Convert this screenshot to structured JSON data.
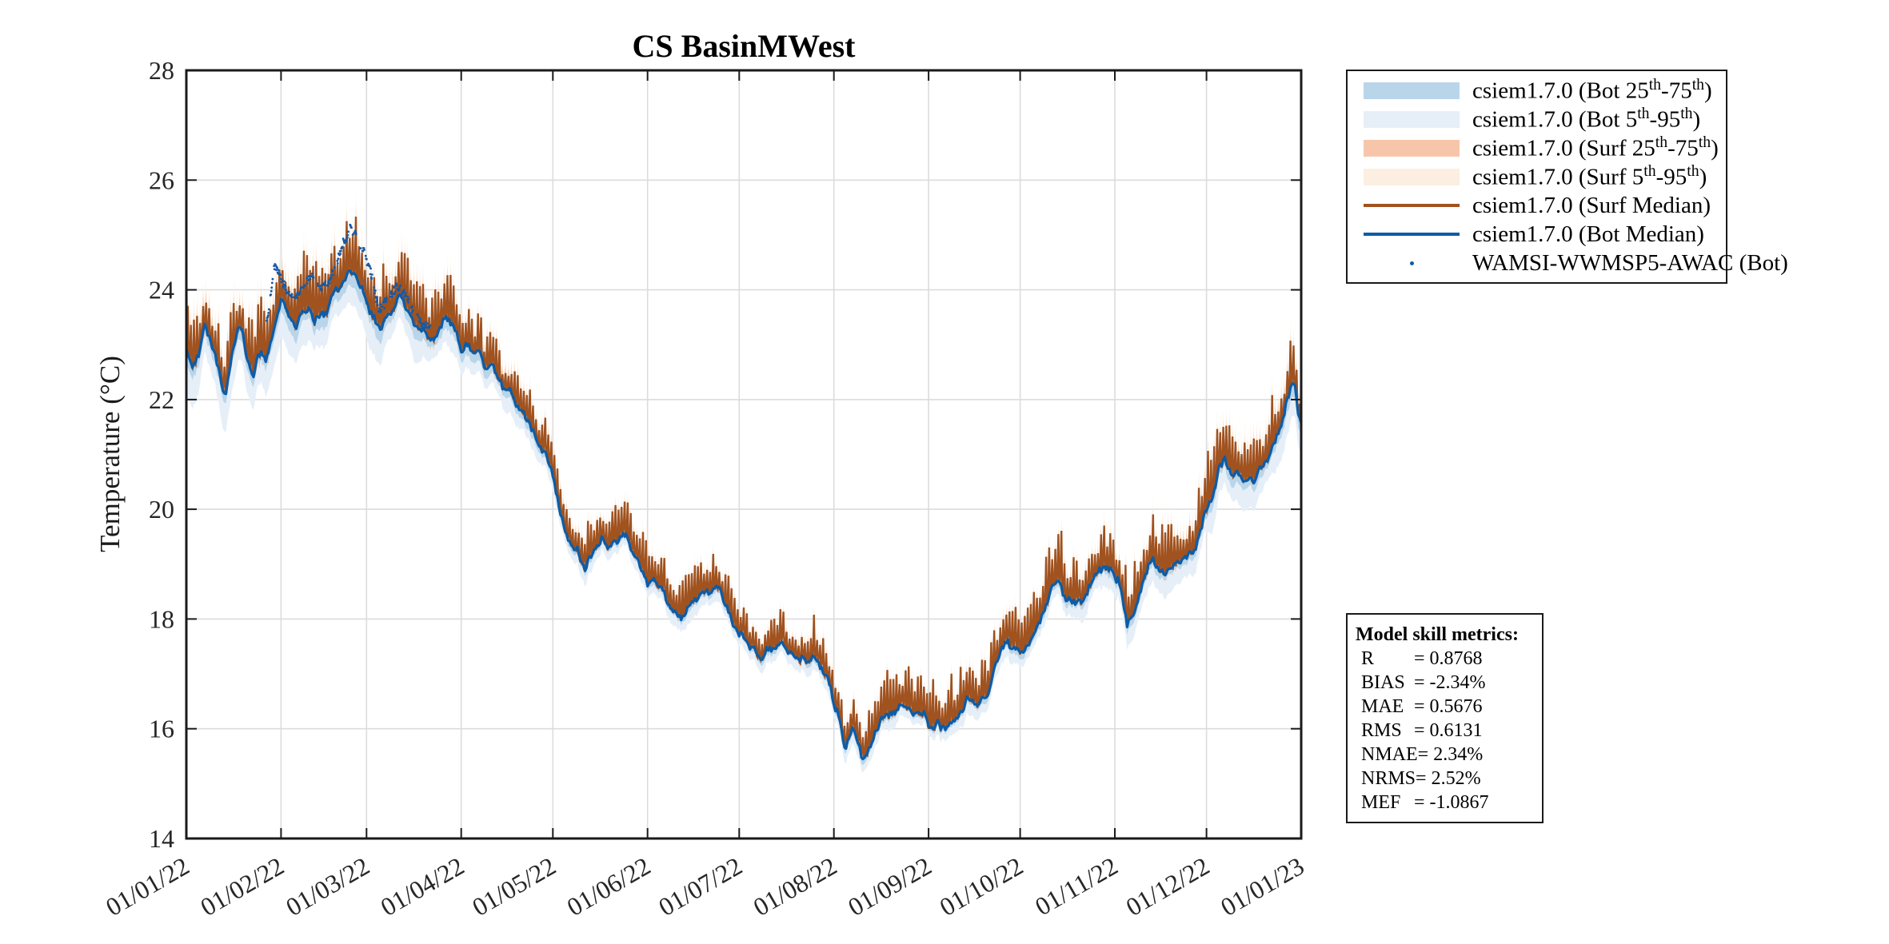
{
  "colors": {
    "bot_band_25_75": "#b9d5ea",
    "bot_band_5_95": "#e6eff8",
    "surf_band_25_75": "#f7c6aa",
    "surf_band_5_95": "#fcefe1",
    "surf_median": "#a0521f",
    "bot_median": "#0d5ca6",
    "obs": "#1559a5",
    "grid": "#dcdcdc",
    "axis": "#1a1a1a",
    "tick_text": "#262626",
    "title_text": "#000000"
  },
  "legend": {
    "items": [
      {
        "label": "csiem1.7.0 (Bot 25^{th}-75^{th})",
        "swatch": "patch",
        "color_key": "bot_band_25_75"
      },
      {
        "label": "csiem1.7.0 (Bot 5^{th}-95^{th})",
        "swatch": "patch",
        "color_key": "bot_band_5_95"
      },
      {
        "label": "csiem1.7.0 (Surf 25^{th}-75^{th})",
        "swatch": "patch",
        "color_key": "surf_band_25_75"
      },
      {
        "label": "csiem1.7.0 (Surf 5^{th}-95^{th})",
        "swatch": "patch",
        "color_key": "surf_band_5_95"
      },
      {
        "label": "csiem1.7.0 (Surf Median)",
        "swatch": "line",
        "color_key": "surf_median"
      },
      {
        "label": "csiem1.7.0 (Bot Median)",
        "swatch": "line",
        "color_key": "bot_median"
      },
      {
        "label": "WAMSI-WWMSP5-AWAC (Bot)",
        "swatch": "dot",
        "color_key": "obs"
      }
    ]
  },
  "metrics": {
    "title": "Model skill metrics:",
    "rows": [
      {
        "label": "R",
        "value": "0.8768"
      },
      {
        "label": "BIAS",
        "value": "-2.34%"
      },
      {
        "label": "MAE",
        "value": "0.5676"
      },
      {
        "label": "RMS",
        "value": "0.6131"
      },
      {
        "label": "NMAE",
        "value": "2.34%"
      },
      {
        "label": "NRMS",
        "value": "2.52%"
      },
      {
        "label": "MEF",
        "value": "-1.0867"
      }
    ]
  },
  "chart_data": {
    "type": "line",
    "title": "CS BasinMWest",
    "ylabel": "Temperature (°C)",
    "xlabel": "",
    "grid": true,
    "legend_position": "outside-top-right",
    "ylim": [
      14,
      28
    ],
    "xlim_days": [
      0,
      365
    ],
    "y_ticks": [
      14,
      16,
      18,
      20,
      22,
      24,
      26,
      28
    ],
    "x_ticks": [
      {
        "day": 0,
        "label": "01/01/22"
      },
      {
        "day": 31,
        "label": "01/02/22"
      },
      {
        "day": 59,
        "label": "01/03/22"
      },
      {
        "day": 90,
        "label": "01/04/22"
      },
      {
        "day": 120,
        "label": "01/05/22"
      },
      {
        "day": 151,
        "label": "01/06/22"
      },
      {
        "day": 181,
        "label": "01/07/22"
      },
      {
        "day": 212,
        "label": "01/08/22"
      },
      {
        "day": 243,
        "label": "01/09/22"
      },
      {
        "day": 273,
        "label": "01/10/22"
      },
      {
        "day": 304,
        "label": "01/11/22"
      },
      {
        "day": 334,
        "label": "01/12/22"
      },
      {
        "day": 365,
        "label": "01/01/23"
      }
    ],
    "series_names": [
      "csiem1.7.0 (Bot Median)",
      "csiem1.7.0 (Surf Median)",
      "WAMSI-WWMSP5-AWAC (Bot)"
    ],
    "bot_median_waypoints": [
      [
        0,
        23.0
      ],
      [
        2,
        22.6
      ],
      [
        4,
        22.75
      ],
      [
        6,
        23.3
      ],
      [
        8,
        23.1
      ],
      [
        10,
        22.7
      ],
      [
        12,
        22.25
      ],
      [
        13,
        22.15
      ],
      [
        15,
        22.9
      ],
      [
        17,
        23.25
      ],
      [
        19,
        23.05
      ],
      [
        21,
        22.6
      ],
      [
        22,
        22.45
      ],
      [
        23,
        22.7
      ],
      [
        25,
        22.85
      ],
      [
        26,
        22.7
      ],
      [
        28,
        23.2
      ],
      [
        30,
        23.6
      ],
      [
        31,
        23.75
      ],
      [
        33,
        23.55
      ],
      [
        36,
        23.35
      ],
      [
        38,
        23.6
      ],
      [
        40,
        23.7
      ],
      [
        42,
        23.5
      ],
      [
        44,
        23.6
      ],
      [
        47,
        23.75
      ],
      [
        49,
        24.0
      ],
      [
        52,
        24.25
      ],
      [
        53,
        24.35
      ],
      [
        55,
        24.2
      ],
      [
        57,
        24.0
      ],
      [
        59,
        23.65
      ],
      [
        60,
        23.55
      ],
      [
        62,
        23.35
      ],
      [
        64,
        23.25
      ],
      [
        65,
        23.45
      ],
      [
        68,
        23.7
      ],
      [
        70,
        23.85
      ],
      [
        72,
        23.6
      ],
      [
        74,
        23.4
      ],
      [
        76,
        23.25
      ],
      [
        78,
        23.2
      ],
      [
        80,
        23.05
      ],
      [
        83,
        23.3
      ],
      [
        85,
        23.45
      ],
      [
        87,
        23.35
      ],
      [
        90,
        23.0
      ],
      [
        93,
        22.85
      ],
      [
        96,
        22.78
      ],
      [
        99,
        22.6
      ],
      [
        101,
        22.5
      ],
      [
        104,
        22.25
      ],
      [
        107,
        22.05
      ],
      [
        110,
        21.8
      ],
      [
        112,
        21.7
      ],
      [
        114,
        21.45
      ],
      [
        116,
        21.2
      ],
      [
        118,
        21.0
      ],
      [
        120,
        20.6
      ],
      [
        122,
        20.15
      ],
      [
        124,
        19.7
      ],
      [
        126,
        19.35
      ],
      [
        128,
        19.3
      ],
      [
        131,
        18.95
      ],
      [
        133,
        19.1
      ],
      [
        136,
        19.45
      ],
      [
        139,
        19.4
      ],
      [
        141,
        19.45
      ],
      [
        143,
        19.5
      ],
      [
        145,
        19.35
      ],
      [
        147,
        19.2
      ],
      [
        149,
        18.9
      ],
      [
        151,
        18.7
      ],
      [
        153,
        18.75
      ],
      [
        155,
        18.6
      ],
      [
        158,
        18.35
      ],
      [
        160,
        18.2
      ],
      [
        162,
        18.05
      ],
      [
        164,
        18.2
      ],
      [
        166,
        18.3
      ],
      [
        168,
        18.35
      ],
      [
        171,
        18.45
      ],
      [
        173,
        18.55
      ],
      [
        175,
        18.5
      ],
      [
        177,
        18.3
      ],
      [
        179,
        18.0
      ],
      [
        181,
        17.75
      ],
      [
        183,
        17.6
      ],
      [
        185,
        17.45
      ],
      [
        187,
        17.3
      ],
      [
        189,
        17.25
      ],
      [
        191,
        17.45
      ],
      [
        193,
        17.55
      ],
      [
        195,
        17.6
      ],
      [
        197,
        17.45
      ],
      [
        199,
        17.35
      ],
      [
        201,
        17.25
      ],
      [
        203,
        17.25
      ],
      [
        205,
        17.3
      ],
      [
        207,
        17.15
      ],
      [
        209,
        16.95
      ],
      [
        211,
        16.7
      ],
      [
        213,
        16.3
      ],
      [
        215,
        15.8
      ],
      [
        216,
        15.7
      ],
      [
        217,
        15.9
      ],
      [
        218,
        16.1
      ],
      [
        219,
        15.95
      ],
      [
        221,
        15.6
      ],
      [
        222,
        15.55
      ],
      [
        224,
        15.7
      ],
      [
        226,
        16.05
      ],
      [
        228,
        16.15
      ],
      [
        230,
        16.25
      ],
      [
        232,
        16.3
      ],
      [
        234,
        16.4
      ],
      [
        236,
        16.45
      ],
      [
        238,
        16.35
      ],
      [
        240,
        16.3
      ],
      [
        243,
        16.1
      ],
      [
        245,
        16.05
      ],
      [
        247,
        16.0
      ],
      [
        249,
        16.05
      ],
      [
        251,
        16.15
      ],
      [
        254,
        16.4
      ],
      [
        257,
        16.5
      ],
      [
        259,
        16.45
      ],
      [
        261,
        16.6
      ],
      [
        263,
        16.75
      ],
      [
        265,
        17.25
      ],
      [
        267,
        17.45
      ],
      [
        269,
        17.55
      ],
      [
        271,
        17.45
      ],
      [
        273,
        17.4
      ],
      [
        275,
        17.45
      ],
      [
        277,
        17.6
      ],
      [
        279,
        17.9
      ],
      [
        281,
        18.25
      ],
      [
        283,
        18.55
      ],
      [
        285,
        18.65
      ],
      [
        287,
        18.45
      ],
      [
        289,
        18.35
      ],
      [
        291,
        18.25
      ],
      [
        293,
        18.3
      ],
      [
        295,
        18.45
      ],
      [
        297,
        18.65
      ],
      [
        299,
        18.85
      ],
      [
        301,
        18.95
      ],
      [
        303,
        18.9
      ],
      [
        305,
        18.7
      ],
      [
        307,
        18.2
      ],
      [
        308,
        17.95
      ],
      [
        310,
        18.1
      ],
      [
        312,
        18.4
      ],
      [
        314,
        18.85
      ],
      [
        316,
        19.0
      ],
      [
        318,
        19.05
      ],
      [
        320,
        18.95
      ],
      [
        322,
        18.9
      ],
      [
        325,
        18.95
      ],
      [
        328,
        19.1
      ],
      [
        330,
        19.3
      ],
      [
        332,
        19.6
      ],
      [
        334,
        19.9
      ],
      [
        336,
        20.2
      ],
      [
        338,
        20.7
      ],
      [
        340,
        21.0
      ],
      [
        341,
        20.85
      ],
      [
        343,
        20.6
      ],
      [
        345,
        20.5
      ],
      [
        347,
        20.45
      ],
      [
        349,
        20.55
      ],
      [
        351,
        20.7
      ],
      [
        353,
        20.85
      ],
      [
        355,
        21.1
      ],
      [
        357,
        21.4
      ],
      [
        359,
        21.65
      ],
      [
        360,
        21.9
      ],
      [
        361,
        22.05
      ],
      [
        362,
        22.15
      ],
      [
        363,
        22.2
      ],
      [
        364,
        21.85
      ],
      [
        365,
        21.7
      ]
    ],
    "surf_spike_envelope": [
      [
        0,
        1.25
      ],
      [
        20,
        1.3
      ],
      [
        45,
        1.4
      ],
      [
        55,
        1.35
      ],
      [
        68,
        1.45
      ],
      [
        80,
        1.1
      ],
      [
        90,
        1.15
      ],
      [
        100,
        0.85
      ],
      [
        112,
        0.7
      ],
      [
        125,
        0.95
      ],
      [
        140,
        0.95
      ],
      [
        152,
        1.05
      ],
      [
        165,
        0.85
      ],
      [
        180,
        0.85
      ],
      [
        195,
        0.8
      ],
      [
        210,
        0.85
      ],
      [
        225,
        0.8
      ],
      [
        240,
        0.95
      ],
      [
        255,
        0.95
      ],
      [
        270,
        1.0
      ],
      [
        283,
        1.1
      ],
      [
        295,
        0.9
      ],
      [
        308,
        1.0
      ],
      [
        320,
        1.05
      ],
      [
        330,
        1.15
      ],
      [
        340,
        1.25
      ],
      [
        350,
        1.2
      ],
      [
        358,
        1.05
      ],
      [
        362,
        0.85
      ],
      [
        365,
        0.75
      ]
    ],
    "band_width_scale": [
      [
        0,
        1.35
      ],
      [
        30,
        1.3
      ],
      [
        60,
        1.4
      ],
      [
        90,
        1.0
      ],
      [
        110,
        0.75
      ],
      [
        130,
        0.6
      ],
      [
        150,
        0.55
      ],
      [
        180,
        0.5
      ],
      [
        210,
        0.55
      ],
      [
        240,
        0.5
      ],
      [
        270,
        0.6
      ],
      [
        300,
        0.75
      ],
      [
        330,
        1.0
      ],
      [
        350,
        1.15
      ],
      [
        365,
        1.2
      ]
    ],
    "observations": {
      "name": "WAMSI-WWMSP5-AWAC (Bot)",
      "day_range": [
        26,
        80
      ],
      "waypoints": [
        [
          26,
          23.3
        ],
        [
          28,
          24.1
        ],
        [
          29,
          24.5
        ],
        [
          31,
          24.2
        ],
        [
          33,
          24.0
        ],
        [
          35,
          23.8
        ],
        [
          37,
          23.9
        ],
        [
          39,
          24.15
        ],
        [
          41,
          24.25
        ],
        [
          43,
          24.1
        ],
        [
          45,
          24.05
        ],
        [
          47,
          24.2
        ],
        [
          49,
          24.45
        ],
        [
          51,
          24.8
        ],
        [
          53,
          25.05
        ],
        [
          54,
          25.15
        ],
        [
          56,
          24.9
        ],
        [
          58,
          24.7
        ],
        [
          60,
          24.4
        ],
        [
          62,
          23.9
        ],
        [
          63,
          23.6
        ],
        [
          65,
          23.75
        ],
        [
          67,
          23.9
        ],
        [
          69,
          24.05
        ],
        [
          71,
          23.95
        ],
        [
          73,
          23.75
        ],
        [
          75,
          23.55
        ],
        [
          77,
          23.4
        ],
        [
          79,
          23.35
        ],
        [
          80,
          23.3
        ]
      ]
    },
    "synthesis": {
      "samples_per_day": 4,
      "obs_step_days": 0.15,
      "obs_keep_threshold": 0.3,
      "bot_noise_amp_slow": 0.11,
      "bot_noise_amp_fast": 0.055,
      "obs_jitter": 0.09,
      "seed": 7
    }
  }
}
